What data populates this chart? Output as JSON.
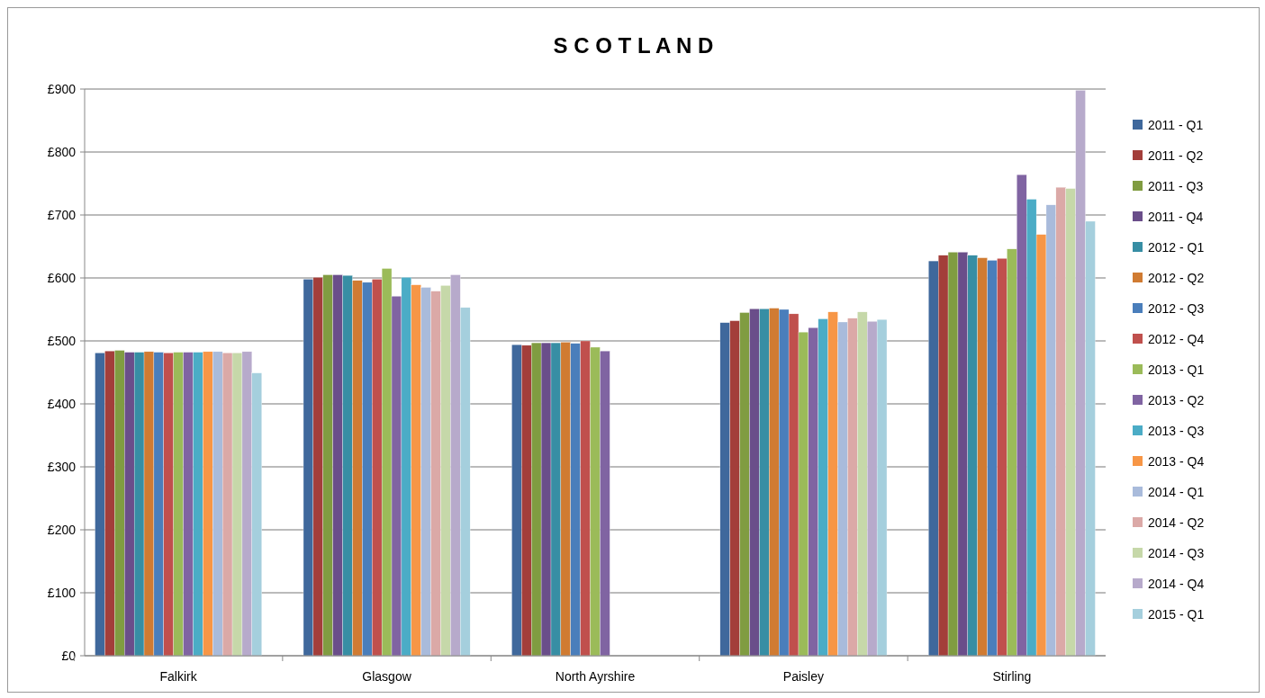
{
  "chart_data": {
    "type": "bar",
    "title": "S C O T L A N D",
    "categories": [
      "Falkirk",
      "Glasgow",
      "North Ayrshire",
      "Paisley",
      "Stirling"
    ],
    "series": [
      {
        "name": "2011 - Q1",
        "color": "#3f689c",
        "values": [
          481,
          598,
          494,
          529,
          627
        ]
      },
      {
        "name": "2011 - Q2",
        "color": "#a33e3a",
        "values": [
          484,
          601,
          493,
          532,
          636
        ]
      },
      {
        "name": "2011 - Q3",
        "color": "#809c41",
        "values": [
          485,
          605,
          497,
          545,
          641
        ]
      },
      {
        "name": "2011 - Q4",
        "color": "#6a4e8a",
        "values": [
          482,
          605,
          497,
          551,
          641
        ]
      },
      {
        "name": "2012 - Q1",
        "color": "#378ea4",
        "values": [
          482,
          604,
          497,
          551,
          636
        ]
      },
      {
        "name": "2012 - Q2",
        "color": "#d07b32",
        "values": [
          483,
          596,
          498,
          552,
          632
        ]
      },
      {
        "name": "2012 - Q3",
        "color": "#4a7ebb",
        "values": [
          482,
          593,
          496,
          550,
          628
        ]
      },
      {
        "name": "2012 - Q4",
        "color": "#c0504d",
        "values": [
          481,
          598,
          500,
          543,
          631
        ]
      },
      {
        "name": "2013 - Q1",
        "color": "#9bbb59",
        "values": [
          482,
          615,
          490,
          514,
          646
        ]
      },
      {
        "name": "2013 - Q2",
        "color": "#8064a2",
        "values": [
          482,
          571,
          484,
          521,
          764
        ]
      },
      {
        "name": "2013 - Q3",
        "color": "#4bacc6",
        "values": [
          482,
          601,
          null,
          535,
          725
        ]
      },
      {
        "name": "2013 - Q4",
        "color": "#f79646",
        "values": [
          483,
          589,
          null,
          546,
          669
        ]
      },
      {
        "name": "2014 - Q1",
        "color": "#a9bbdb",
        "values": [
          483,
          585,
          null,
          530,
          716
        ]
      },
      {
        "name": "2014 - Q2",
        "color": "#dba9a7",
        "values": [
          481,
          579,
          null,
          536,
          744
        ]
      },
      {
        "name": "2014 - Q3",
        "color": "#c6d8a9",
        "values": [
          481,
          588,
          null,
          546,
          742
        ]
      },
      {
        "name": "2014 - Q4",
        "color": "#b7aacb",
        "values": [
          483,
          605,
          null,
          531,
          898
        ]
      },
      {
        "name": "2015 - Q1",
        "color": "#a5cfdd",
        "values": [
          449,
          553,
          null,
          534,
          690
        ]
      }
    ],
    "ylim": [
      0,
      900
    ],
    "yticks": [
      {
        "value": 0,
        "label": "£0"
      },
      {
        "value": 100,
        "label": "£100"
      },
      {
        "value": 200,
        "label": "£200"
      },
      {
        "value": 300,
        "label": "£300"
      },
      {
        "value": 400,
        "label": "£400"
      },
      {
        "value": 500,
        "label": "£500"
      },
      {
        "value": 600,
        "label": "£600"
      },
      {
        "value": 700,
        "label": "£700"
      },
      {
        "value": 800,
        "label": "£800"
      },
      {
        "value": 900,
        "label": "£900"
      }
    ],
    "grid": "y",
    "legend": "right"
  }
}
